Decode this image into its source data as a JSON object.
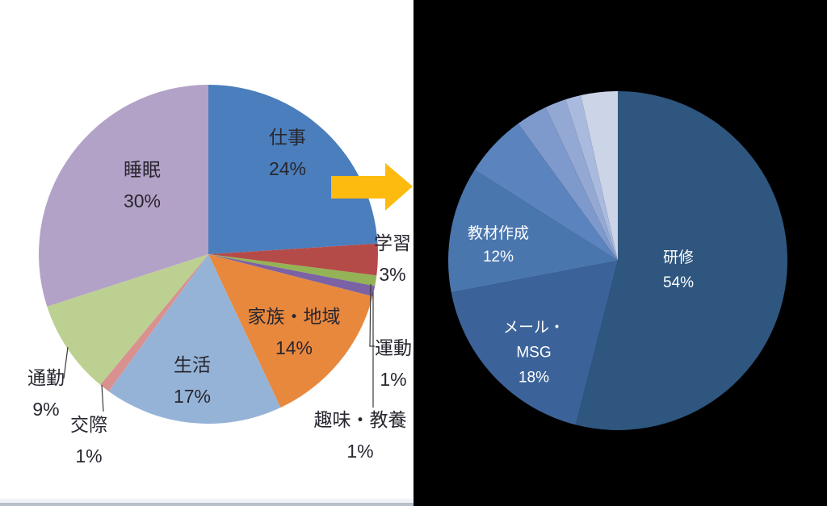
{
  "page": {
    "left_panel_background": "#ffffff",
    "right_panel_background": "#000000",
    "bottom_border_light": "#f1f3f6",
    "bottom_border_dark": "#b9c0ca",
    "left_label_text_color": "#28262f",
    "right_label_text_color": "#ffffff"
  },
  "arrow": {
    "color": "#fdbb10"
  },
  "chart_data": [
    {
      "type": "pie",
      "id": "daily-time-allocation",
      "panel": "left",
      "title": "",
      "legend_position": "none",
      "start_angle_deg": 0,
      "direction": "clockwise",
      "slices": [
        {
          "name": "shigoto",
          "label": "仕事",
          "value": 24,
          "pct": "24%",
          "color": "#4b7ebc",
          "label_placement": "inside"
        },
        {
          "name": "gakushu",
          "label": "学習",
          "value": 3,
          "pct": "3%",
          "color": "#b54b49",
          "label_placement": "outside"
        },
        {
          "name": "undou",
          "label": "運動",
          "value": 1,
          "pct": "1%",
          "color": "#94b356",
          "label_placement": "outside-leader"
        },
        {
          "name": "shumi-kyouyou",
          "label": "趣味・教養",
          "value": 1,
          "pct": "1%",
          "color": "#7b62a5",
          "label_placement": "outside-leader"
        },
        {
          "name": "kazoku-chiiki",
          "label": "家族・地域",
          "value": 14,
          "pct": "14%",
          "color": "#e8883d",
          "label_placement": "inside"
        },
        {
          "name": "seikatsu",
          "label": "生活",
          "value": 17,
          "pct": "17%",
          "color": "#95b3d7",
          "label_placement": "inside"
        },
        {
          "name": "kousai",
          "label": "交際",
          "value": 1,
          "pct": "1%",
          "color": "#d9918f",
          "label_placement": "outside-leader"
        },
        {
          "name": "tsuukin",
          "label": "通勤",
          "value": 9,
          "pct": "9%",
          "color": "#bcd092",
          "label_placement": "outside-leader"
        },
        {
          "name": "suimin",
          "label": "睡眠",
          "value": 30,
          "pct": "30%",
          "color": "#b3a2c7",
          "label_placement": "inside"
        }
      ]
    },
    {
      "type": "pie",
      "id": "work-breakdown",
      "panel": "right",
      "title": "",
      "legend_position": "none",
      "start_angle_deg": 0,
      "direction": "clockwise",
      "slices": [
        {
          "name": "kenshu",
          "label": "研修",
          "value": 54,
          "pct": "54%",
          "color": "#2e567e",
          "label_placement": "inside"
        },
        {
          "name": "mail-msg",
          "label": "メール・MSG",
          "label_lines": [
            "メール・",
            "MSG"
          ],
          "value": 18,
          "pct": "18%",
          "color": "#3c6399",
          "label_placement": "inside"
        },
        {
          "name": "kyozai-sakusei",
          "label": "教材作成",
          "value": 12,
          "pct": "12%",
          "color": "#4a76ae",
          "label_placement": "inside"
        },
        {
          "name": "unlabeled-1",
          "label": "",
          "value": 6,
          "pct": "",
          "color": "#5b83bd",
          "label_placement": "none"
        },
        {
          "name": "unlabeled-2",
          "label": "",
          "value": 3,
          "pct": "",
          "color": "#7e99cb",
          "label_placement": "none"
        },
        {
          "name": "unlabeled-3",
          "label": "",
          "value": 2,
          "pct": "",
          "color": "#93a9d4",
          "label_placement": "none"
        },
        {
          "name": "unlabeled-4",
          "label": "",
          "value": 1.5,
          "pct": "",
          "color": "#a9bade",
          "label_placement": "none"
        },
        {
          "name": "unlabeled-5",
          "label": "",
          "value": 3.5,
          "pct": "",
          "color": "#ccd4e8",
          "label_placement": "none"
        }
      ]
    }
  ]
}
